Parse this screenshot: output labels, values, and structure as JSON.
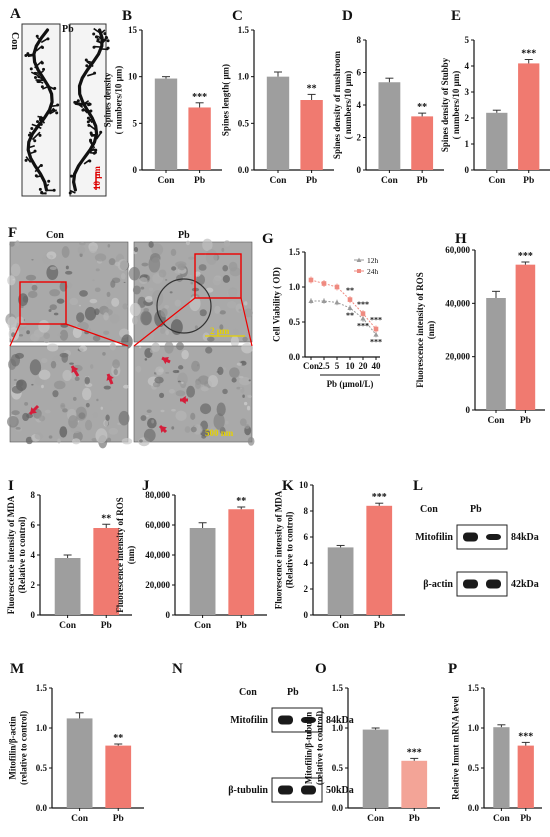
{
  "colors": {
    "con": "#9e9e9e",
    "pb": "#f07a70",
    "pb_light": "#f3a497",
    "line12": "#9a9a9a",
    "line24": "#ef8a80"
  },
  "panel_labels": [
    "A",
    "B",
    "C",
    "D",
    "E",
    "F",
    "G",
    "H",
    "I",
    "J",
    "K",
    "L",
    "M",
    "N",
    "O",
    "P"
  ],
  "panel_a": {
    "con_label": "Con",
    "pb_label": "Pb",
    "scale": "10 μm"
  },
  "panel_f": {
    "con_label": "Con",
    "pb_label": "Pb",
    "scale_top": "2 μm",
    "scale_bottom": "500 nm"
  },
  "panel_l": {
    "col1": "Con",
    "col2": "Pb",
    "row1": "Mitofilin",
    "row2": "β-actin",
    "kda1": "84kDa",
    "kda2": "42kDa"
  },
  "panel_n": {
    "col1": "Con",
    "col2": "Pb",
    "row1": "Mitofilin",
    "row2": "β-tubulin",
    "kda1": "84kDa",
    "kda2": "50kDa"
  },
  "chart_data": [
    {
      "id": "B",
      "type": "bar",
      "categories": [
        "Con",
        "Pb"
      ],
      "values": [
        9.8,
        6.7
      ],
      "errors": [
        0.2,
        0.5
      ],
      "ylabel": "Spines density( numbers/10 μm)",
      "ylim": [
        0,
        15
      ],
      "yticks": [
        "0",
        "5",
        "10",
        "15"
      ],
      "yticks_v": [
        0,
        5,
        10,
        15
      ],
      "sig": "***"
    },
    {
      "id": "C",
      "type": "bar",
      "categories": [
        "Con",
        "Pb"
      ],
      "values": [
        1.0,
        0.75
      ],
      "errors": [
        0.05,
        0.06
      ],
      "ylabel": "Spines length( μm)",
      "ylim": [
        0,
        1.5
      ],
      "yticks": [
        "0.0",
        "0.5",
        "1.0",
        "1.5"
      ],
      "yticks_v": [
        0,
        0.5,
        1.0,
        1.5
      ],
      "sig": "**"
    },
    {
      "id": "D",
      "type": "bar",
      "categories": [
        "Con",
        "Pb"
      ],
      "values": [
        5.4,
        3.3
      ],
      "errors": [
        0.25,
        0.2
      ],
      "ylabel": "Spines density of mushroom ( numbers/10 μm)",
      "ylim": [
        0,
        8
      ],
      "yticks": [
        "0",
        "2",
        "4",
        "6",
        "8"
      ],
      "yticks_v": [
        0,
        2,
        4,
        6,
        8
      ],
      "sig": "**"
    },
    {
      "id": "E",
      "type": "bar",
      "categories": [
        "Con",
        "Pb"
      ],
      "values": [
        2.2,
        4.1
      ],
      "errors": [
        0.1,
        0.15
      ],
      "ylabel": "Spines density of Stubby ( numbers/10 μm)",
      "ylim": [
        0,
        5
      ],
      "yticks": [
        "0",
        "1",
        "2",
        "3",
        "4",
        "5"
      ],
      "yticks_v": [
        0,
        1,
        2,
        3,
        4,
        5
      ],
      "sig": "***"
    },
    {
      "id": "G",
      "type": "line",
      "x": [
        "Con",
        "2.5",
        "5",
        "10",
        "20",
        "40"
      ],
      "xlabel": "Pb (μmol/L)",
      "ylabel": "Cell Viability ( OD)",
      "ylim": [
        0,
        1.5
      ],
      "yticks": [
        "0.0",
        "0.5",
        "1.0",
        "1.5"
      ],
      "yticks_v": [
        0,
        0.5,
        1.0,
        1.5
      ],
      "series": [
        {
          "name": "12h",
          "values": [
            0.8,
            0.8,
            0.78,
            0.7,
            0.55,
            0.32
          ],
          "errors": [
            0.04,
            0.04,
            0.04,
            0.04,
            0.05,
            0.04
          ]
        },
        {
          "name": "24h",
          "values": [
            1.1,
            1.05,
            1.0,
            0.82,
            0.62,
            0.4
          ],
          "errors": [
            0.05,
            0.05,
            0.05,
            0.05,
            0.05,
            0.05
          ]
        }
      ],
      "sig": [
        "",
        "",
        "",
        "**",
        "***",
        "***"
      ]
    },
    {
      "id": "H",
      "type": "bar",
      "categories": [
        "Con",
        "Pb"
      ],
      "values": [
        42000,
        54500
      ],
      "errors": [
        2500,
        1000
      ],
      "ylabel": "Fluorescence intensity of ROS(nm)",
      "ylim": [
        0,
        60000
      ],
      "yticks": [
        "0",
        "20,000",
        "40,000",
        "60,000"
      ],
      "yticks_v": [
        0,
        20000,
        40000,
        60000
      ],
      "sig": "***"
    },
    {
      "id": "I",
      "type": "bar",
      "categories": [
        "Con",
        "Pb"
      ],
      "values": [
        3.8,
        5.8
      ],
      "errors": [
        0.2,
        0.25
      ],
      "ylabel": "Fluorescence intensity of MDA (Relative to control)",
      "ylim": [
        0,
        8
      ],
      "yticks": [
        "0",
        "2",
        "4",
        "6",
        "8"
      ],
      "yticks_v": [
        0,
        2,
        4,
        6,
        8
      ],
      "sig": "**"
    },
    {
      "id": "J",
      "type": "bar",
      "categories": [
        "Con",
        "Pb"
      ],
      "values": [
        58000,
        70500
      ],
      "errors": [
        3500,
        1500
      ],
      "ylabel": "Fluorescence intensity of ROS(nm)",
      "ylim": [
        0,
        80000
      ],
      "yticks": [
        "0",
        "20,000",
        "40,000",
        "60,000",
        "80,000"
      ],
      "yticks_v": [
        0,
        20000,
        40000,
        60000,
        80000
      ],
      "sig": "**"
    },
    {
      "id": "K",
      "type": "bar",
      "categories": [
        "Con",
        "Pb"
      ],
      "values": [
        5.2,
        8.4
      ],
      "errors": [
        0.15,
        0.2
      ],
      "ylabel": "Fluorescence intensity of MDA (Relative to control)",
      "ylim": [
        0,
        10
      ],
      "yticks": [
        "0",
        "2",
        "4",
        "6",
        "8",
        "10"
      ],
      "yticks_v": [
        0,
        2,
        4,
        6,
        8,
        10
      ],
      "sig": "***"
    },
    {
      "id": "M",
      "type": "bar",
      "categories": [
        "Con",
        "Pb"
      ],
      "values": [
        1.12,
        0.78
      ],
      "errors": [
        0.07,
        0.02
      ],
      "ylabel": "Mitofilin/β-actin (relative to control)",
      "ylim": [
        0,
        1.5
      ],
      "yticks": [
        "0.0",
        "0.5",
        "1.0",
        "1.5"
      ],
      "yticks_v": [
        0,
        0.5,
        1.0,
        1.5
      ],
      "sig": "**"
    },
    {
      "id": "O",
      "type": "bar",
      "categories": [
        "Con",
        "Pb"
      ],
      "values": [
        0.98,
        0.59
      ],
      "errors": [
        0.02,
        0.03
      ],
      "ylabel": "Mitofilin/β-tubulin (relative to control)",
      "ylim": [
        0,
        1.5
      ],
      "yticks": [
        "0.0",
        "0.5",
        "1.0",
        "1.5"
      ],
      "yticks_v": [
        0,
        0.5,
        1.0,
        1.5
      ],
      "sig": "***",
      "light_pb": true
    },
    {
      "id": "P",
      "type": "bar",
      "categories": [
        "Con",
        "Pb"
      ],
      "values": [
        1.01,
        0.78
      ],
      "errors": [
        0.03,
        0.04
      ],
      "ylabel": "Relative Immt mRNA level",
      "ylim": [
        0,
        1.5
      ],
      "yticks": [
        "0.0",
        "0.5",
        "1.0",
        "1.5"
      ],
      "yticks_v": [
        0,
        0.5,
        1.0,
        1.5
      ],
      "sig": "***"
    }
  ]
}
